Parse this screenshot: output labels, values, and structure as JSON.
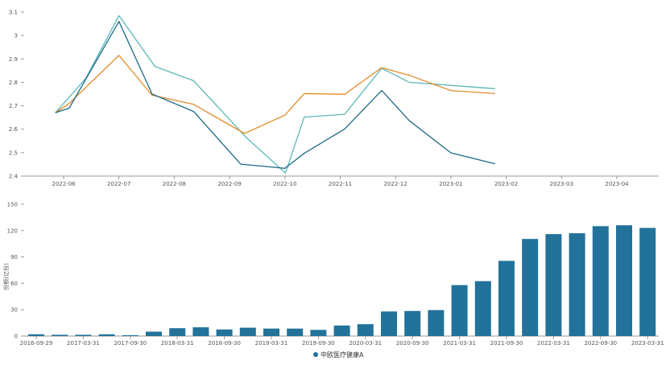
{
  "chart_data": [
    {
      "type": "line",
      "categories": [
        "2022-06",
        "2022-07",
        "2022-08",
        "2022-09",
        "2022-10",
        "2022-11",
        "2022-12",
        "2023-01",
        "2023-02",
        "2023-03",
        "2023-04"
      ],
      "y_ticks": [
        "2.4",
        "2.5",
        "2.6",
        "2.7",
        "2.8",
        "2.9",
        "3",
        "3.1"
      ],
      "ylim": [
        2.4,
        3.1
      ],
      "grid": false,
      "legend": "hidden",
      "series": [
        {
          "color": "#5bb8b8",
          "points": [
            [
              -0.15,
              2.67
            ],
            [
              0.4,
              2.817
            ],
            [
              1.0,
              3.085
            ],
            [
              1.65,
              2.868
            ],
            [
              2.35,
              2.807
            ],
            [
              3.3,
              2.565
            ],
            [
              4.01,
              2.413
            ],
            [
              4.35,
              2.652
            ],
            [
              5.08,
              2.664
            ],
            [
              5.75,
              2.86
            ],
            [
              6.25,
              2.8
            ],
            [
              7.0,
              2.787
            ],
            [
              7.8,
              2.773
            ]
          ]
        },
        {
          "color": "#e28c2a",
          "points": [
            [
              -0.15,
              2.67
            ],
            [
              0.1,
              2.71
            ],
            [
              1.0,
              2.915
            ],
            [
              1.6,
              2.745
            ],
            [
              2.35,
              2.706
            ],
            [
              3.27,
              2.582
            ],
            [
              4.0,
              2.66
            ],
            [
              4.35,
              2.752
            ],
            [
              5.08,
              2.749
            ],
            [
              5.75,
              2.863
            ],
            [
              6.25,
              2.83
            ],
            [
              7.0,
              2.765
            ],
            [
              7.8,
              2.752
            ]
          ]
        },
        {
          "color": "#1d6a86",
          "points": [
            [
              -0.15,
              2.67
            ],
            [
              0.1,
              2.69
            ],
            [
              1.0,
              3.06
            ],
            [
              1.6,
              2.75
            ],
            [
              2.35,
              2.676
            ],
            [
              3.2,
              2.451
            ],
            [
              4.0,
              2.433
            ],
            [
              4.35,
              2.497
            ],
            [
              5.08,
              2.601
            ],
            [
              5.75,
              2.765
            ],
            [
              6.25,
              2.636
            ],
            [
              7.0,
              2.499
            ],
            [
              7.8,
              2.452
            ]
          ]
        }
      ]
    },
    {
      "type": "bar",
      "categories": [
        "2016-09-29",
        "2016-12-31",
        "2017-03-31",
        "2017-06-30",
        "2017-09-30",
        "2017-12-31",
        "2018-03-31",
        "2018-06-30",
        "2018-09-30",
        "2018-12-31",
        "2019-03-31",
        "2019-06-30",
        "2019-09-30",
        "2019-12-31",
        "2020-03-31",
        "2020-06-30",
        "2020-09-30",
        "2020-12-31",
        "2021-03-31",
        "2021-06-30",
        "2021-09-30",
        "2021-12-31",
        "2022-03-31",
        "2022-06-30",
        "2022-09-30",
        "2022-12-31",
        "2023-03-31"
      ],
      "x_tick_labels": [
        "2016-09-29",
        "2017-03-31",
        "2017-09-30",
        "2018-03-31",
        "2018-09-30",
        "2019-03-31",
        "2019-09-30",
        "2020-03-31",
        "2020-09-30",
        "2021-03-31",
        "2021-09-30",
        "2022-03-31",
        "2022-09-30",
        "2023-03-31"
      ],
      "series": [
        {
          "name": "中欧医疗健康A",
          "color": "#22729a",
          "values": [
            2,
            1.5,
            1.5,
            2,
            1,
            5,
            9,
            10,
            7.5,
            9.5,
            8.5,
            8.5,
            7,
            12,
            13.5,
            28,
            28.5,
            29.5,
            58,
            62.5,
            85.5,
            110.5,
            116,
            117,
            125,
            126,
            123
          ]
        }
      ],
      "ylabel": "份额(亿份)",
      "y_ticks": [
        "0",
        "30",
        "60",
        "90",
        "120",
        "150"
      ],
      "ylim": [
        0,
        150
      ],
      "grid": false,
      "legend": "bottom-center"
    }
  ]
}
